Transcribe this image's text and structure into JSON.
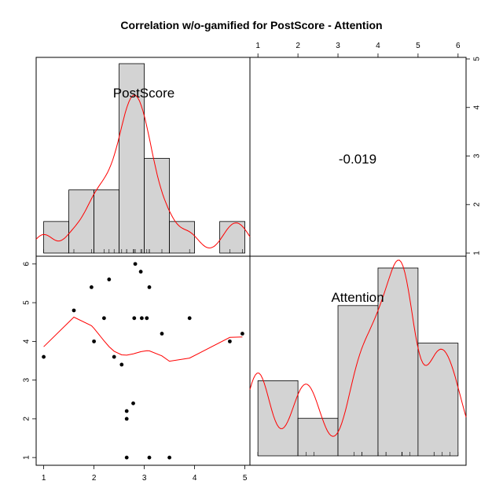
{
  "chart_data": {
    "type": "scatter-matrix",
    "title": "Correlation w/o-gamified for PostScore - Attention",
    "variables": [
      "PostScore",
      "Attention"
    ],
    "correlation": {
      "label": "-0.019",
      "value": -0.019
    },
    "postscore_histogram": {
      "bin_edges": [
        1.0,
        1.5,
        2.0,
        2.5,
        3.0,
        3.5,
        4.0,
        4.5,
        5.0
      ],
      "counts": [
        1,
        2,
        2,
        6,
        3,
        1,
        0,
        1
      ]
    },
    "attention_histogram": {
      "bin_edges": [
        1,
        2,
        3,
        4,
        5,
        6
      ],
      "counts": [
        2,
        1,
        4,
        5,
        3
      ]
    },
    "scatter": {
      "xlabel": "PostScore",
      "ylabel": "Attention",
      "points": [
        [
          1.0,
          3.6
        ],
        [
          1.6,
          4.8
        ],
        [
          1.95,
          5.4
        ],
        [
          2.0,
          4.0
        ],
        [
          2.2,
          4.6
        ],
        [
          2.3,
          5.6
        ],
        [
          2.4,
          3.6
        ],
        [
          2.55,
          3.4
        ],
        [
          2.65,
          2.2
        ],
        [
          2.65,
          2.0
        ],
        [
          2.65,
          1.0
        ],
        [
          2.78,
          2.4
        ],
        [
          2.8,
          4.6
        ],
        [
          2.82,
          6.0
        ],
        [
          2.93,
          5.8
        ],
        [
          2.95,
          4.6
        ],
        [
          3.05,
          4.6
        ],
        [
          3.1,
          5.4
        ],
        [
          3.1,
          1.0
        ],
        [
          3.35,
          4.2
        ],
        [
          3.5,
          1.0
        ],
        [
          3.9,
          4.6
        ],
        [
          4.7,
          4.0
        ],
        [
          4.95,
          4.2
        ]
      ]
    },
    "axes": {
      "postscore_ticks": [
        1,
        2,
        3,
        4,
        5
      ],
      "attention_ticks": [
        1,
        2,
        3,
        4,
        5,
        6
      ],
      "postscore_range": [
        0.85,
        5.1
      ],
      "attention_range": [
        0.8,
        6.2
      ]
    },
    "colors": {
      "bar_fill": "#d3d3d3",
      "bar_stroke": "#000000",
      "density_line": "#ff0000",
      "smooth_line": "#ff0000",
      "points": "#000000",
      "frame": "#000000"
    }
  }
}
